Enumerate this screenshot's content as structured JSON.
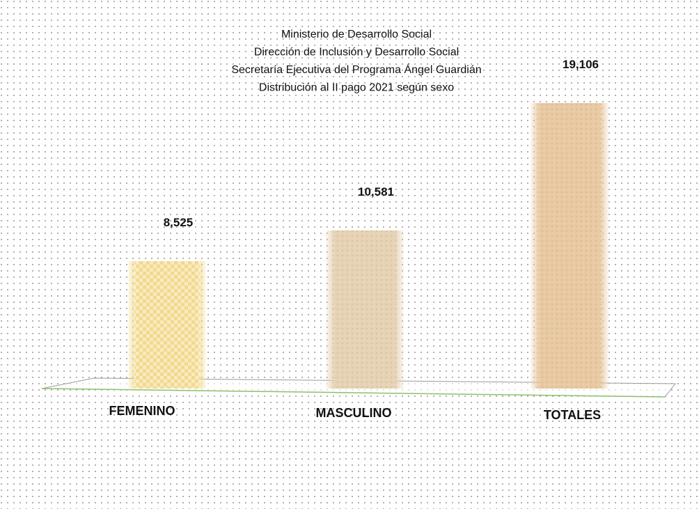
{
  "chart_data": {
    "type": "bar",
    "title": [
      "Ministerio de Desarrollo Social",
      "Dirección de Inclusión y Desarrollo Social",
      "Secretaría Ejecutiva del Programa Ángel Guardián",
      "Distribución al II pago 2021 según sexo"
    ],
    "categories": [
      "FEMENINO",
      "MASCULINO",
      "TOTALES"
    ],
    "values": [
      8525,
      10581,
      19106
    ],
    "value_labels": [
      "8,525",
      "10,581",
      "19,106"
    ],
    "colors": [
      "#f3d98c",
      "#e6d2b4",
      "#e8c9a2"
    ]
  }
}
